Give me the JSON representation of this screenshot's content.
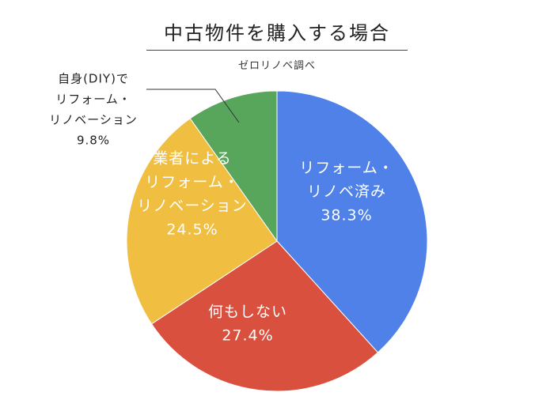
{
  "chart_data": {
    "type": "pie",
    "title": "中古物件を購入する場合",
    "subtitle": "ゼロリノベ調べ",
    "slices": [
      {
        "label_lines": [
          "リフォーム・",
          "リノベ済み"
        ],
        "value": 38.3,
        "value_label": "38.3%",
        "color": "#4F81E8",
        "label_color": "#ffffff",
        "label_inside": true
      },
      {
        "label_lines": [
          "何もしない"
        ],
        "value": 27.4,
        "value_label": "27.4%",
        "color": "#D9503F",
        "label_color": "#ffffff",
        "label_inside": true
      },
      {
        "label_lines": [
          "業者による",
          "リフォーム・",
          "リノベーション"
        ],
        "value": 24.5,
        "value_label": "24.5%",
        "color": "#F0BE41",
        "label_color": "#ffffff",
        "label_inside": true
      },
      {
        "label_lines": [
          "自身(DIY)で",
          "リフォーム・",
          "リノベーション"
        ],
        "value": 9.8,
        "value_label": "9.8%",
        "color": "#58A55C",
        "label_color": "#222222",
        "label_inside": false
      }
    ]
  }
}
